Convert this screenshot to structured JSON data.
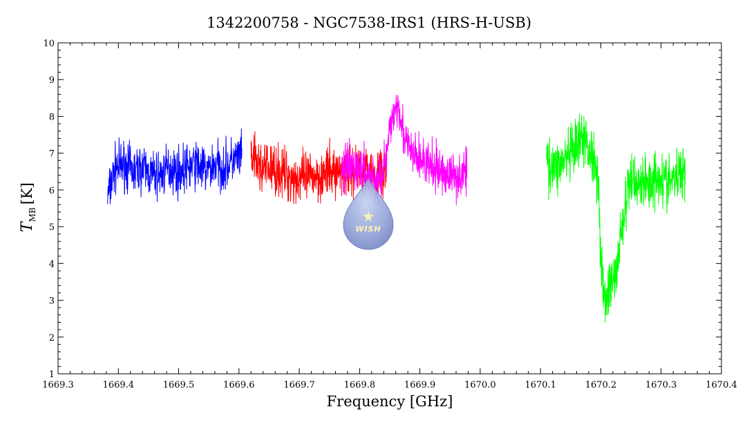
{
  "chart_data": {
    "type": "line",
    "title": "1342200758 - NGC7538-IRS1 (HRS-H-USB)",
    "xlabel": "Frequency [GHz]",
    "ylabel_main": "T",
    "ylabel_sub": "MB",
    "ylabel_unit": "[K]",
    "xlim": [
      1669.3,
      1670.4
    ],
    "ylim": [
      1,
      10
    ],
    "x_ticks": [
      {
        "value": 1669.3,
        "label": "1669.3"
      },
      {
        "value": 1669.4,
        "label": "1669.4"
      },
      {
        "value": 1669.5,
        "label": "1669.5"
      },
      {
        "value": 1669.6,
        "label": "1669.6"
      },
      {
        "value": 1669.7,
        "label": "1669.7"
      },
      {
        "value": 1669.8,
        "label": "1669.8"
      },
      {
        "value": 1669.9,
        "label": "1669.9"
      },
      {
        "value": 1670.0,
        "label": "1670.0"
      },
      {
        "value": 1670.1,
        "label": "1670.1"
      },
      {
        "value": 1670.2,
        "label": "1670.2"
      },
      {
        "value": 1670.3,
        "label": "1670.3"
      },
      {
        "value": 1670.4,
        "label": "1670.4"
      }
    ],
    "y_ticks": [
      {
        "value": 1,
        "label": "1"
      },
      {
        "value": 2,
        "label": "2"
      },
      {
        "value": 3,
        "label": "3"
      },
      {
        "value": 4,
        "label": "4"
      },
      {
        "value": 5,
        "label": "5"
      },
      {
        "value": 6,
        "label": "6"
      },
      {
        "value": 7,
        "label": "7"
      },
      {
        "value": 8,
        "label": "8"
      },
      {
        "value": 9,
        "label": "9"
      },
      {
        "value": 10,
        "label": "10"
      }
    ],
    "grid": false,
    "series": [
      {
        "color": "#0000ff",
        "x": [
          1669.382,
          1669.395,
          1669.41,
          1669.425,
          1669.44,
          1669.455,
          1669.47,
          1669.485,
          1669.5,
          1669.515,
          1669.53,
          1669.545,
          1669.56,
          1669.575,
          1669.59,
          1669.605
        ],
        "y": [
          5.8,
          6.6,
          6.7,
          6.5,
          6.6,
          6.4,
          6.4,
          6.6,
          6.5,
          6.6,
          6.7,
          6.5,
          6.7,
          6.6,
          6.8,
          6.9
        ],
        "noise": 0.55
      },
      {
        "color": "#ff0000",
        "x": [
          1669.62,
          1669.635,
          1669.65,
          1669.665,
          1669.68,
          1669.695,
          1669.71,
          1669.725,
          1669.74,
          1669.755,
          1669.77,
          1669.785,
          1669.8,
          1669.815,
          1669.83,
          1669.845
        ],
        "y": [
          6.9,
          6.6,
          6.6,
          6.5,
          6.4,
          6.3,
          6.3,
          6.4,
          6.4,
          6.5,
          6.5,
          6.5,
          6.6,
          6.5,
          6.4,
          6.6
        ],
        "noise": 0.6
      },
      {
        "color": "#ff00ff",
        "x": [
          1669.77,
          1669.785,
          1669.8,
          1669.815,
          1669.83,
          1669.845,
          1669.855,
          1669.865,
          1669.875,
          1669.89,
          1669.905,
          1669.92,
          1669.935,
          1669.95,
          1669.965,
          1669.978
        ],
        "y": [
          6.5,
          6.6,
          6.6,
          6.4,
          6.2,
          6.9,
          8.1,
          8.4,
          7.3,
          6.9,
          6.8,
          6.6,
          6.5,
          6.4,
          6.4,
          6.5
        ],
        "noise": 0.55
      },
      {
        "color": "#00ff00",
        "x": [
          1670.11,
          1670.125,
          1670.14,
          1670.155,
          1670.17,
          1670.185,
          1670.195,
          1670.2,
          1670.205,
          1670.215,
          1670.225,
          1670.235,
          1670.25,
          1670.265,
          1670.28,
          1670.295,
          1670.31,
          1670.325,
          1670.34
        ],
        "y": [
          6.8,
          6.6,
          6.8,
          7.0,
          7.4,
          7.0,
          6.5,
          4.3,
          3.0,
          3.3,
          3.7,
          5.0,
          6.3,
          6.2,
          6.2,
          6.4,
          6.2,
          6.3,
          6.6
        ],
        "noise": 0.65
      }
    ]
  },
  "logo": {
    "text": "WISH"
  }
}
